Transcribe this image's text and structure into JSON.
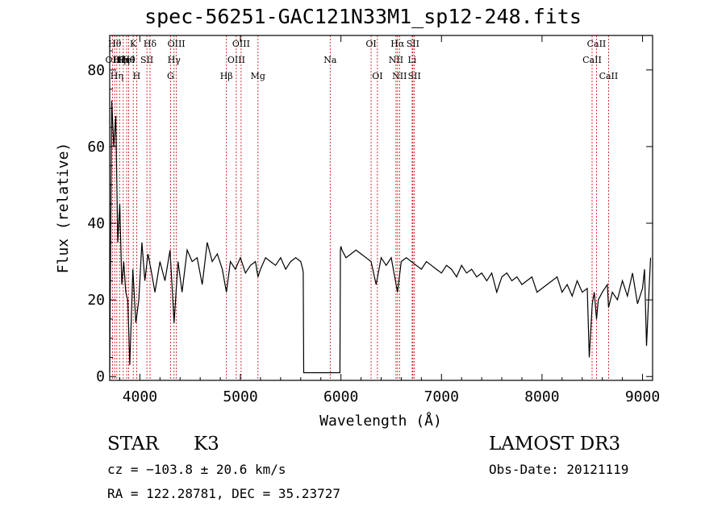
{
  "chart_data": {
    "type": "line",
    "title": "spec-56251-GAC121N33M1_sp12-248.fits",
    "xlabel": "Wavelength (Å)",
    "ylabel": "Flux (relative)",
    "xlim": [
      3700,
      9100
    ],
    "ylim": [
      -1,
      89
    ],
    "xticks": [
      "4000",
      "5000",
      "6000",
      "7000",
      "8000",
      "9000"
    ],
    "yticks": [
      "0",
      "20",
      "40",
      "60",
      "80"
    ],
    "xtick_values": [
      4000,
      5000,
      6000,
      7000,
      8000,
      9000
    ],
    "ytick_values": [
      0,
      20,
      40,
      60,
      80
    ],
    "grid": false,
    "series": [
      {
        "x": [
          3700,
          3720,
          3740,
          3760,
          3780,
          3800,
          3820,
          3840,
          3860,
          3880,
          3900,
          3930,
          3960,
          3990,
          4020,
          4050,
          4080,
          4110,
          4150,
          4200,
          4250,
          4300,
          4340,
          4380,
          4420,
          4470,
          4520,
          4570,
          4620,
          4670,
          4720,
          4770,
          4820,
          4861,
          4900,
          4950,
          5000,
          5050,
          5100,
          5150,
          5175,
          5200,
          5250,
          5300,
          5350,
          5400,
          5450,
          5500,
          5550,
          5600,
          5620,
          5625,
          5630,
          5700,
          5800,
          5900,
          5990,
          5995,
          6000,
          6010,
          6050,
          6100,
          6150,
          6200,
          6250,
          6300,
          6350,
          6400,
          6450,
          6500,
          6563,
          6600,
          6650,
          6700,
          6750,
          6800,
          6850,
          6900,
          6950,
          7000,
          7050,
          7100,
          7150,
          7200,
          7250,
          7300,
          7350,
          7400,
          7450,
          7500,
          7550,
          7600,
          7650,
          7700,
          7750,
          7800,
          7850,
          7900,
          7950,
          8000,
          8050,
          8100,
          8150,
          8200,
          8250,
          8300,
          8350,
          8400,
          8450,
          8470,
          8500,
          8520,
          8542,
          8560,
          8600,
          8650,
          8662,
          8700,
          8750,
          8800,
          8850,
          8900,
          8950,
          9000,
          9020,
          9040,
          9060,
          9080
        ],
        "y": [
          1,
          72,
          60,
          68,
          35,
          45,
          24,
          30,
          22,
          20,
          3,
          28,
          14,
          20,
          35,
          25,
          32,
          28,
          22,
          30,
          25,
          33,
          14,
          30,
          22,
          33,
          30,
          31,
          24,
          35,
          30,
          32,
          28,
          22,
          30,
          28,
          31,
          27,
          29,
          30,
          26,
          28,
          31,
          30,
          29,
          31,
          28,
          30,
          31,
          30,
          28,
          27,
          1,
          1,
          1,
          1,
          1,
          33,
          34,
          33,
          31,
          32,
          33,
          32,
          31,
          30,
          24,
          31,
          29,
          31,
          22,
          30,
          31,
          30,
          29,
          28,
          30,
          29,
          28,
          27,
          29,
          28,
          26,
          29,
          27,
          28,
          26,
          27,
          25,
          27,
          22,
          26,
          27,
          25,
          26,
          24,
          25,
          26,
          22,
          23,
          24,
          25,
          26,
          22,
          24,
          21,
          25,
          22,
          23,
          5,
          19,
          22,
          15,
          20,
          22,
          24,
          18,
          22,
          20,
          25,
          21,
          27,
          19,
          23,
          28,
          8,
          20,
          31
        ]
      }
    ],
    "lines": [
      {
        "x": 3727,
        "label": "OII",
        "row": 2
      },
      {
        "x": 3750,
        "label": "Hθ",
        "row": 1
      },
      {
        "x": 3771,
        "label": "Hη",
        "row": 3
      },
      {
        "x": 3798,
        "label": "Hζ",
        "row": 0
      },
      {
        "x": 3835,
        "label": "Hη",
        "row": 0
      },
      {
        "x": 3869,
        "label": "HeI",
        "row": 2
      },
      {
        "x": 3889,
        "label": "Hθ",
        "row": 0
      },
      {
        "x": 3934,
        "label": "K",
        "row": 1
      },
      {
        "x": 3968,
        "label": "H",
        "row": 3
      },
      {
        "x": 4070,
        "label": "SII",
        "row": 2
      },
      {
        "x": 4101,
        "label": "Hδ",
        "row": 1
      },
      {
        "x": 4305,
        "label": "G",
        "row": 3
      },
      {
        "x": 4340,
        "label": "Hγ",
        "row": 2
      },
      {
        "x": 4363,
        "label": "OIII",
        "row": 1
      },
      {
        "x": 4861,
        "label": "Hβ",
        "row": 3
      },
      {
        "x": 4959,
        "label": "OIII",
        "row": 2
      },
      {
        "x": 5007,
        "label": "OIII",
        "row": 1
      },
      {
        "x": 5175,
        "label": "Mg",
        "row": 3
      },
      {
        "x": 5893,
        "label": "Na",
        "row": 2
      },
      {
        "x": 6300,
        "label": "OI",
        "row": 1
      },
      {
        "x": 6363,
        "label": "OI",
        "row": 3
      },
      {
        "x": 6548,
        "label": "NII",
        "row": 2
      },
      {
        "x": 6563,
        "label": "Hα",
        "row": 1
      },
      {
        "x": 6583,
        "label": "NII",
        "row": 3
      },
      {
        "x": 6708,
        "label": "Li",
        "row": 2
      },
      {
        "x": 6716,
        "label": "SII",
        "row": 1
      },
      {
        "x": 6731,
        "label": "SII",
        "row": 3
      },
      {
        "x": 8498,
        "label": "CaII",
        "row": 2
      },
      {
        "x": 8542,
        "label": "CaII",
        "row": 1
      },
      {
        "x": 8662,
        "label": "CaII",
        "row": 3
      }
    ]
  },
  "info": {
    "object_class": "STAR",
    "subclass": "K3",
    "survey": "LAMOST DR3",
    "cz": "cz = −103.8 ± 20.6 km/s",
    "obs_date": "Obs-Date: 20121119",
    "radec": "RA = 122.28781, DEC =  35.23727"
  },
  "colors": {
    "line_marker": "#cc0000",
    "spectrum": "#000000",
    "axes": "#000000"
  }
}
